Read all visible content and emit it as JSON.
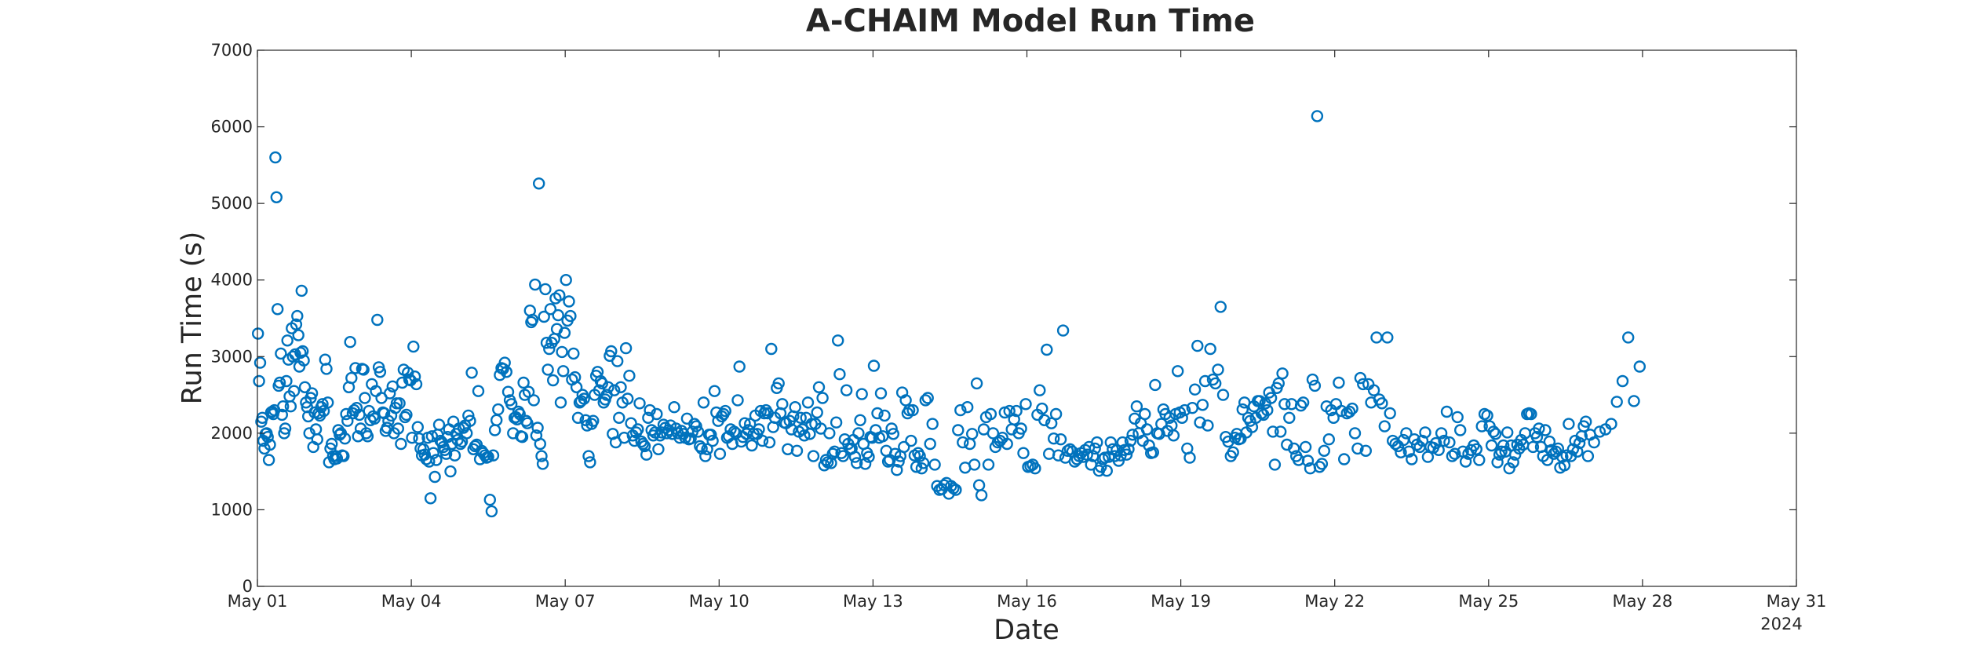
{
  "chart_data": {
    "type": "scatter",
    "title": "A-CHAIM Model Run Time",
    "xlabel": "Date",
    "ylabel": "Run Time (s)",
    "year_label": "2024",
    "xlim": [
      "2024-05-01",
      "2024-05-31"
    ],
    "ylim": [
      0,
      7000
    ],
    "yticks": [
      0,
      1000,
      2000,
      3000,
      4000,
      5000,
      6000,
      7000
    ],
    "xticks": [
      {
        "date": "2024-05-01",
        "label": "May 01"
      },
      {
        "date": "2024-05-04",
        "label": "May 04"
      },
      {
        "date": "2024-05-07",
        "label": "May 07"
      },
      {
        "date": "2024-05-10",
        "label": "May 10"
      },
      {
        "date": "2024-05-13",
        "label": "May 13"
      },
      {
        "date": "2024-05-16",
        "label": "May 16"
      },
      {
        "date": "2024-05-19",
        "label": "May 19"
      },
      {
        "date": "2024-05-22",
        "label": "May 22"
      },
      {
        "date": "2024-05-25",
        "label": "May 25"
      },
      {
        "date": "2024-05-28",
        "label": "May 28"
      },
      {
        "date": "2024-05-31",
        "label": "May 31"
      }
    ],
    "grid": false,
    "marker": "open-circle",
    "marker_color": "#0072BD",
    "series": [
      {
        "x_dates": [
          "2024-05-01",
          "2024-05-02",
          "2024-05-03",
          "2024-05-04",
          "2024-05-05",
          "2024-05-06",
          "2024-05-07",
          "2024-05-08",
          "2024-05-09",
          "2024-05-10",
          "2024-05-11",
          "2024-05-12",
          "2024-05-13",
          "2024-05-14",
          "2024-05-15",
          "2024-05-16",
          "2024-05-17",
          "2024-05-18",
          "2024-05-19",
          "2024-05-20",
          "2024-05-21",
          "2024-05-22",
          "2024-05-23",
          "2024-05-24",
          "2024-05-25",
          "2024-05-26",
          "2024-05-27",
          "2024-05-28",
          "2024-05-29",
          "2024-05-30",
          "2024-05-31"
        ],
        "values_by_day": [
          [
            3300,
            2680,
            2920,
            2150,
            2200,
            1900,
            1800,
            1990,
            2000,
            1950,
            1650,
            1850,
            2270,
            2280,
            2250,
            2300,
            5600,
            5080,
            3620,
            2620,
            2660,
            3040,
            2240,
            2350,
            2000,
            2060,
            2680,
            3210,
            2960,
            2480,
            2350,
            3370,
            3000,
            2550,
            3030,
            3420,
            3530,
            3280,
            2870,
            3050,
            3860,
            3070,
            2950,
            2600,
            2400,
            2340,
            2220
          ],
          [
            2000,
            2460,
            2520,
            1820,
            2270,
            2050,
            1920,
            2260,
            2230,
            2340,
            2380,
            2290,
            2960,
            2840,
            2400,
            1620,
            1800,
            1860,
            1700,
            1660,
            1700,
            1670,
            2040,
            1980,
            2000,
            1710,
            1700,
            1930,
            2250,
            2160,
            2600,
            3190,
            2720,
            2260,
            2300,
            2850,
            2330,
            1960,
            2240
          ],
          [
            2060,
            2840,
            2830,
            2460,
            2000,
            1960,
            2290,
            2170,
            2640,
            2220,
            2190,
            2550,
            3480,
            2860,
            2800,
            2460,
            2270,
            2260,
            2030,
            2070,
            2160,
            2520,
            2230,
            2610,
            2000,
            2330,
            2390,
            2060,
            2390,
            1860,
            2660,
            2830,
            2210,
            2240,
            2790,
            2700,
            2690
          ],
          [
            1940,
            3130,
            2740,
            2640,
            2080,
            1930,
            1800,
            1710,
            1790,
            1720,
            1660,
            1940,
            1630,
            1150,
            1960,
            1740,
            1430,
            1650,
            1980,
            2110,
            1900,
            1880,
            1820,
            1780,
            1730,
            1950,
            2050,
            1500,
            1860,
            2150,
            1710,
            1990,
            1910,
            2060,
            1860,
            1890
          ],
          [
            2070,
            2100,
            2000,
            2230,
            2160,
            2790,
            1790,
            1830,
            1850,
            2550,
            1660,
            1770,
            1740,
            1710,
            1680,
            1690,
            1130,
            980,
            1710,
            2040,
            2170,
            2310,
            2760,
            2850,
            2840,
            2920,
            2800,
            2540,
            2430,
            2380,
            2000
          ],
          [
            2200,
            2210,
            2180,
            2280,
            2250,
            1960,
            1950,
            2660,
            2500,
            2160,
            2130,
            2540,
            3600,
            3450,
            3480,
            2430,
            3940,
            1970,
            2070,
            5260,
            1860,
            1700,
            1600,
            3520,
            3880,
            3180,
            2830,
            3100,
            3620,
            3180,
            2690,
            3230,
            3760,
            3360,
            3540,
            3800,
            2400,
            3060,
            2810,
            3310
          ],
          [
            4000,
            3470,
            3720,
            3530,
            2700,
            3040,
            2730,
            2600,
            2200,
            2400,
            2420,
            2500,
            2450,
            2170,
            2100,
            1700,
            1620,
            2120,
            2160,
            2500,
            2750,
            2800,
            2560,
            2680,
            2650,
            2400,
            2440,
            2500,
            2600,
            3010,
            3070,
            1990,
            2560,
            1880
          ],
          [
            2940,
            2200,
            2600,
            2400,
            1940,
            3110,
            2450,
            2750,
            2130,
            1970,
            1900,
            2010,
            2050,
            2390,
            1890,
            1860,
            1830,
            1720,
            2200,
            2300,
            2040,
            1970,
            2010,
            2250,
            1790,
            1970,
            2010,
            2110,
            2070,
            2000
          ],
          [
            2040,
            2100,
            1990,
            2340,
            2060,
            2000,
            1940,
            2030,
            1990,
            1940,
            2190,
            1920,
            1930,
            2020,
            2120,
            2090,
            2020,
            1830,
            1800,
            2400,
            1700,
            1790,
            1980,
            1980,
            1900,
            2550,
            2270,
            2160
          ],
          [
            1730,
            2220,
            2250,
            2290,
            1940,
            1960,
            2050,
            1860,
            2020,
            2000,
            2430,
            2870,
            1890,
            1950,
            2130,
            1990,
            2040,
            2120,
            1840,
            1990,
            2230,
            1990,
            2050,
            2290,
            1900,
            2260,
            2300,
            2260,
            1880
          ],
          [
            3100,
            2080,
            2200,
            2590,
            2650,
            2260,
            2380,
            2140,
            2130,
            1790,
            2160,
            2050,
            2220,
            2340,
            1770,
            2020,
            2200,
            2050,
            1970,
            2200,
            2400,
            1990,
            2120,
            1700,
            2120,
            2270,
            2600,
            2060
          ],
          [
            2460,
            1580,
            1650,
            1620,
            2000,
            1610,
            1730,
            1760,
            2140,
            3210,
            2770,
            1740,
            1700,
            1920,
            2560,
            1860,
            1790,
            1800,
            1910,
            1690,
            1610,
            2000,
            2170,
            2510,
            1860,
            1600,
            1740,
            1690,
            1950,
            1940
          ],
          [
            2880,
            2040,
            2260,
            1940,
            2520,
            1960,
            2230,
            1770,
            1630,
            1650,
            2060,
            1990,
            1730,
            1520,
            1630,
            1700,
            2530,
            1820,
            2430,
            2260,
            2300,
            1900,
            2300,
            1710,
            1560,
            1740,
            1700,
            1540,
            1610
          ],
          [
            2430,
            2460,
            1860,
            2120,
            1590,
            1310,
            1260,
            1270,
            1320,
            1350,
            1210,
            1310,
            1280,
            1260,
            2040,
            2300,
            1880,
            1550,
            2340,
            1860,
            1990,
            1590
          ],
          [
            2650,
            1320,
            1190,
            2050,
            2210,
            1590,
            2250,
            2000,
            1820,
            1880,
            1900,
            1940,
            2270,
            1860,
            2290,
            2050,
            2180,
            2290,
            2000,
            2060,
            1740,
            2380
          ],
          [
            1560,
            1570,
            1590,
            1540,
            2240,
            2560,
            2320,
            2170,
            3090,
            1730,
            2130,
            1930,
            2250,
            1710,
            1920,
            3340,
            1680,
            1770,
            1790,
            1760,
            1630,
            1660
          ],
          [
            1700,
            1740,
            1690,
            1780,
            1720,
            1820,
            1590,
            1700,
            1800,
            1880,
            1510,
            1560,
            1660,
            1680,
            1510,
            1690,
            1880,
            1790,
            1700,
            1780,
            1640,
            1710,
            1880,
            1780,
            1720,
            1790
          ],
          [
            1900,
            1980,
            2190,
            2350,
            2000,
            2130,
            1900,
            2250,
            2050,
            1840,
            1740,
            1750,
            2630,
            2000,
            1990,
            2120,
            2310,
            2250,
            2030,
            2200,
            2100,
            1970,
            2250,
            2810,
            2270
          ],
          [
            2200,
            2300,
            1800,
            1680,
            2330,
            2570,
            3140,
            2140,
            2370,
            2680,
            2100,
            3100,
            2700,
            2650,
            2830,
            3650,
            2500,
            1950,
            1890,
            1700
          ],
          [
            1750,
            1940,
            1990,
            1920,
            1930,
            2310,
            2400,
            2010,
            2200,
            2160,
            2080,
            2350,
            2200,
            2420,
            2420,
            2260,
            2240,
            2390,
            2300,
            2530,
            2460,
            2020,
            1590,
            2590,
            2650,
            2020,
            2780
          ],
          [
            2380,
            1850,
            2200,
            2380,
            1800,
            1700,
            1650,
            2360,
            2400,
            1820,
            1640,
            1540,
            2700,
            2620,
            6140,
            1560,
            1600,
            1770,
            2350,
            1920,
            2300,
            2200
          ],
          [
            2380,
            2660,
            2290,
            1660,
            2260,
            2280,
            2320,
            2000,
            1800,
            2720,
            2640,
            1770,
            2640,
            2400,
            2560,
            3250,
            2440,
            2390,
            2090
          ],
          [
            3250,
            2260,
            1900,
            1860,
            1830,
            1750,
            1910,
            2000,
            1760,
            1660,
            1920,
            1850,
            1820,
            1900,
            2010,
            1690,
            1820,
            1810,
            1870
          ],
          [
            1780,
            2000,
            1900,
            2280,
            1880,
            1700,
            1730,
            2210,
            2040,
            1760,
            1630,
            1730,
            1780,
            1840,
            1790,
            1650,
            2090,
            2250,
            2230
          ],
          [
            2090,
            1840,
            2020,
            1990,
            1620,
            1720,
            1760,
            1840,
            1760,
            2010,
            1540,
            1840,
            1620,
            1720,
            1850,
            1800,
            1910,
            1850,
            2000,
            2250,
            2260,
            2250,
            1820,
            2000,
            1950,
            2060
          ],
          [
            1820,
            1700,
            2040,
            1650,
            1890,
            1780,
            1730,
            1760,
            1800,
            1550,
            1690,
            1580,
            1710,
            2120,
            1700,
            1790,
            1900,
            1760,
            1870,
            1960,
            2090,
            2150,
            1700,
            1980
          ],
          [
            1880,
            2020,
            2050,
            2120,
            2410,
            2680,
            3250,
            2420,
            2870
          ],
          [],
          [],
          [],
          []
        ]
      }
    ]
  }
}
